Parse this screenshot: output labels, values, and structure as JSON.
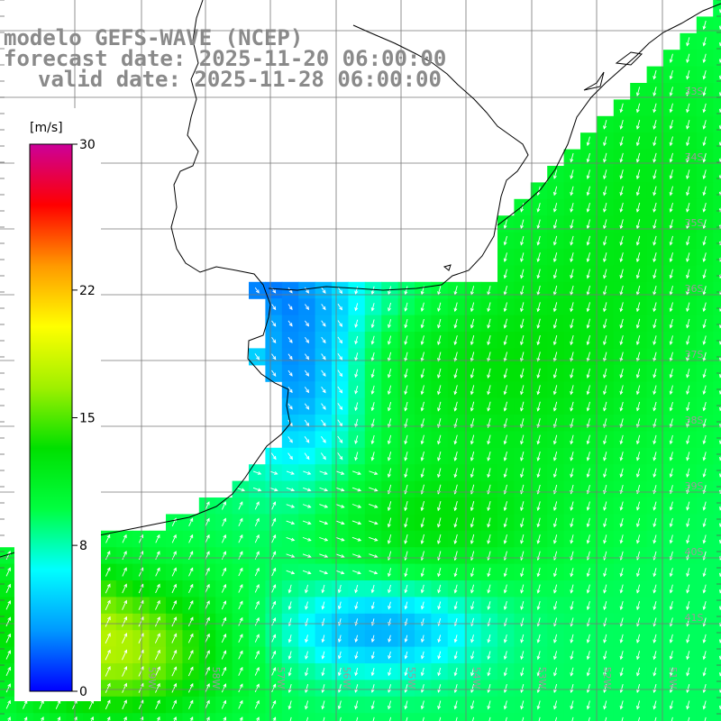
{
  "title": {
    "line1": "modelo GEFS-WAVE (NCEP)",
    "line2": "forecast date: 2025-11-20 06:00:00",
    "line3": "valid date: 2025-11-28 06:00:00"
  },
  "colorbar": {
    "unit": "[m/s]",
    "ticks": [
      "30",
      "22",
      "15",
      "8",
      "0"
    ],
    "tick_values": [
      30,
      22,
      15,
      8,
      0
    ],
    "min": 0,
    "max": 30,
    "colors": [
      "#0000ff",
      "#0099ff",
      "#00ffff",
      "#00ff40",
      "#00e000",
      "#a0f000",
      "#ffff00",
      "#ff9900",
      "#ff0000",
      "#cc0099"
    ]
  },
  "grid": {
    "lat_labels": [
      "33S",
      "34S",
      "35S",
      "36S",
      "37S",
      "38S",
      "39S",
      "40S",
      "41S"
    ],
    "lon_labels": [
      "60W",
      "59W",
      "58W",
      "57W",
      "56W",
      "55W",
      "54W",
      "53W",
      "52W",
      "51W"
    ]
  },
  "map": {
    "type": "wind-speed-field",
    "ocean_color": "#ffffff",
    "land_color": "#ffffff",
    "arrow_color": "#ffffff"
  }
}
